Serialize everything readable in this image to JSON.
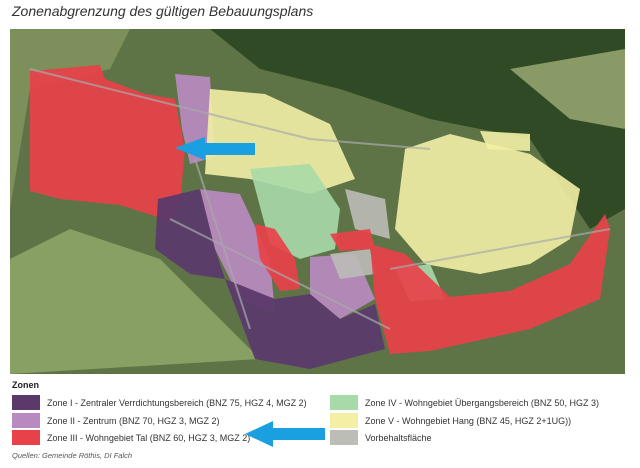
{
  "title": "Zonenabgrenzung des gültigen Bebauungsplans",
  "legend": {
    "heading": "Zonen",
    "items": [
      {
        "label": "Zone I - Zentraler Verrdichtungsbereich (BNZ 75, HGZ 4, MGZ 2)",
        "color": "#5b3a6b"
      },
      {
        "label": "Zone II - Zentrum (BNZ 70, HGZ 3, MGZ 2)",
        "color": "#b98ac0"
      },
      {
        "label": "Zone III - Wohngebiet Tal (BNZ 60, HGZ 3, MGZ 2)",
        "color": "#e8414a"
      },
      {
        "label": "Zone IV - Wohngebiet Übergangsbereich (BNZ 50, HGZ 3)",
        "color": "#a8d9a8"
      },
      {
        "label": "Zone V - Wohngebiet Hang (BNZ 45, HGZ 2+1UG))",
        "color": "#f3f0a6"
      },
      {
        "label": "Vorbehaltsfläche",
        "color": "#bdbdb8"
      }
    ]
  },
  "arrow_color": "#1aa0e0",
  "source": "Quellen: Gemeinde Röthis, DI Falch"
}
